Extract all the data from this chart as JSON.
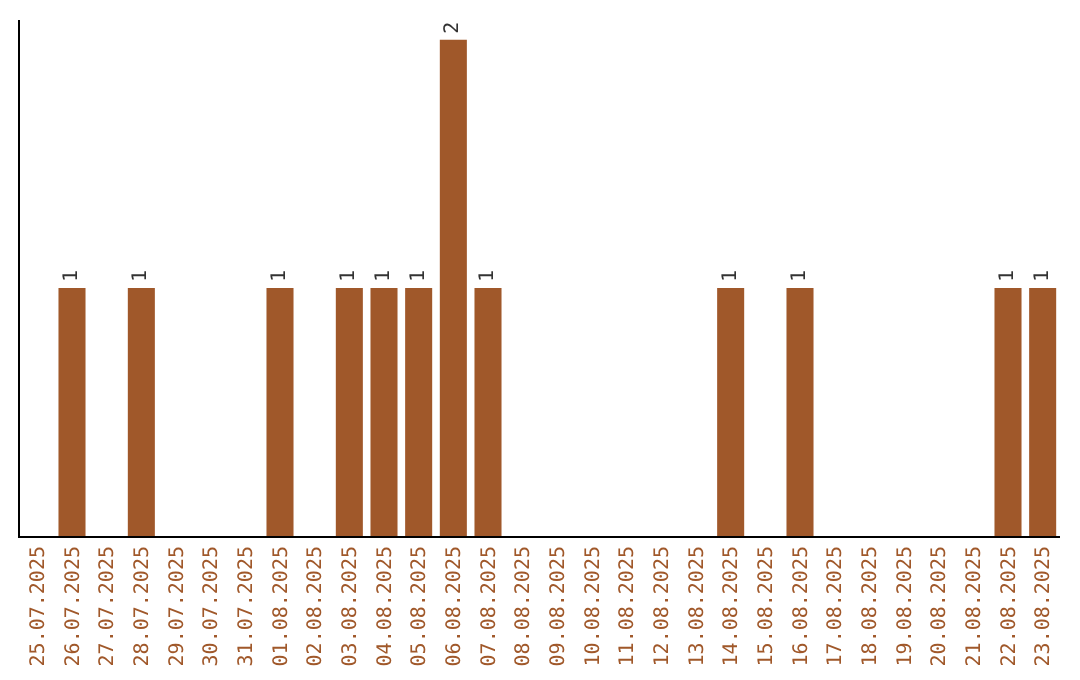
{
  "chart_data": {
    "type": "bar",
    "categories": [
      "25.07.2025",
      "26.07.2025",
      "27.07.2025",
      "28.07.2025",
      "29.07.2025",
      "30.07.2025",
      "31.07.2025",
      "01.08.2025",
      "02.08.2025",
      "03.08.2025",
      "04.08.2025",
      "05.08.2025",
      "06.08.2025",
      "07.08.2025",
      "08.08.2025",
      "09.08.2025",
      "10.08.2025",
      "11.08.2025",
      "12.08.2025",
      "13.08.2025",
      "14.08.2025",
      "15.08.2025",
      "16.08.2025",
      "17.08.2025",
      "18.08.2025",
      "19.08.2025",
      "20.08.2025",
      "21.08.2025",
      "22.08.2025",
      "23.08.2025"
    ],
    "values": [
      0,
      1,
      0,
      1,
      0,
      0,
      0,
      1,
      0,
      1,
      1,
      1,
      2,
      1,
      0,
      0,
      0,
      0,
      0,
      0,
      1,
      0,
      1,
      0,
      0,
      0,
      0,
      0,
      1,
      1
    ],
    "value_labels": [
      null,
      "1",
      null,
      "1",
      null,
      null,
      null,
      "1",
      null,
      "1",
      "1",
      "1",
      "2",
      "1",
      null,
      null,
      null,
      null,
      null,
      null,
      "1",
      null,
      "1",
      null,
      null,
      null,
      null,
      null,
      "1",
      "1"
    ],
    "color": "#a0582a",
    "tick_labels": "x",
    "grid": false
  }
}
